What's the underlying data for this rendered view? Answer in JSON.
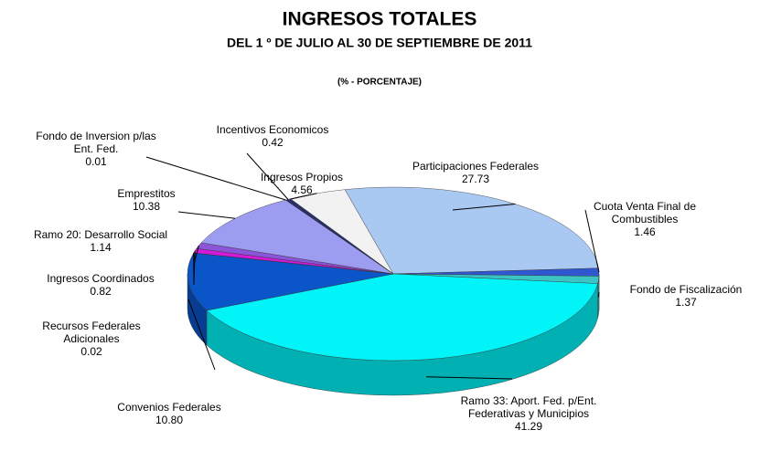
{
  "chart_data": {
    "type": "pie",
    "title": "INGRESOS TOTALES",
    "subtitle": "DEL 1 º DE JULIO AL 30 DE SEPTIEMBRE DE 2011",
    "unit_label": "(% - PORCENTAJE)",
    "categories": [
      "Ingresos Propios",
      "Participaciones Federales",
      "Cuota Venta Final de\nCombustibles",
      "Fondo de Fiscalización",
      "Ramo 33: Aport. Fed. p/Ent.\nFederativas y Municipios",
      "Convenios Federales",
      "Recursos Federales\nAdicionales",
      "Ingresos Coordinados",
      "Ramo 20: Desarrollo Social",
      "Emprestitos",
      "Fondo de Inversion p/las\nEnt. Fed.",
      "Incentivos Economicos"
    ],
    "values": [
      4.56,
      27.73,
      1.46,
      1.37,
      41.29,
      10.8,
      0.02,
      0.82,
      1.14,
      10.38,
      0.01,
      0.42
    ],
    "value_labels": [
      "4.56",
      "27.73",
      "1.46",
      "1.37",
      "41.29",
      "10.80",
      "0.02",
      "0.82",
      "1.14",
      "10.38",
      "0.01",
      "0.42"
    ],
    "colors": [
      "#f2f2f2",
      "#a9c8f2",
      "#3057d0",
      "#3cc4c4",
      "#00f4f8",
      "#0a55c8",
      "#1a2f80",
      "#d21ad8",
      "#8a55d8",
      "#9c9cf0",
      "#556699",
      "#2a2f66"
    ]
  }
}
